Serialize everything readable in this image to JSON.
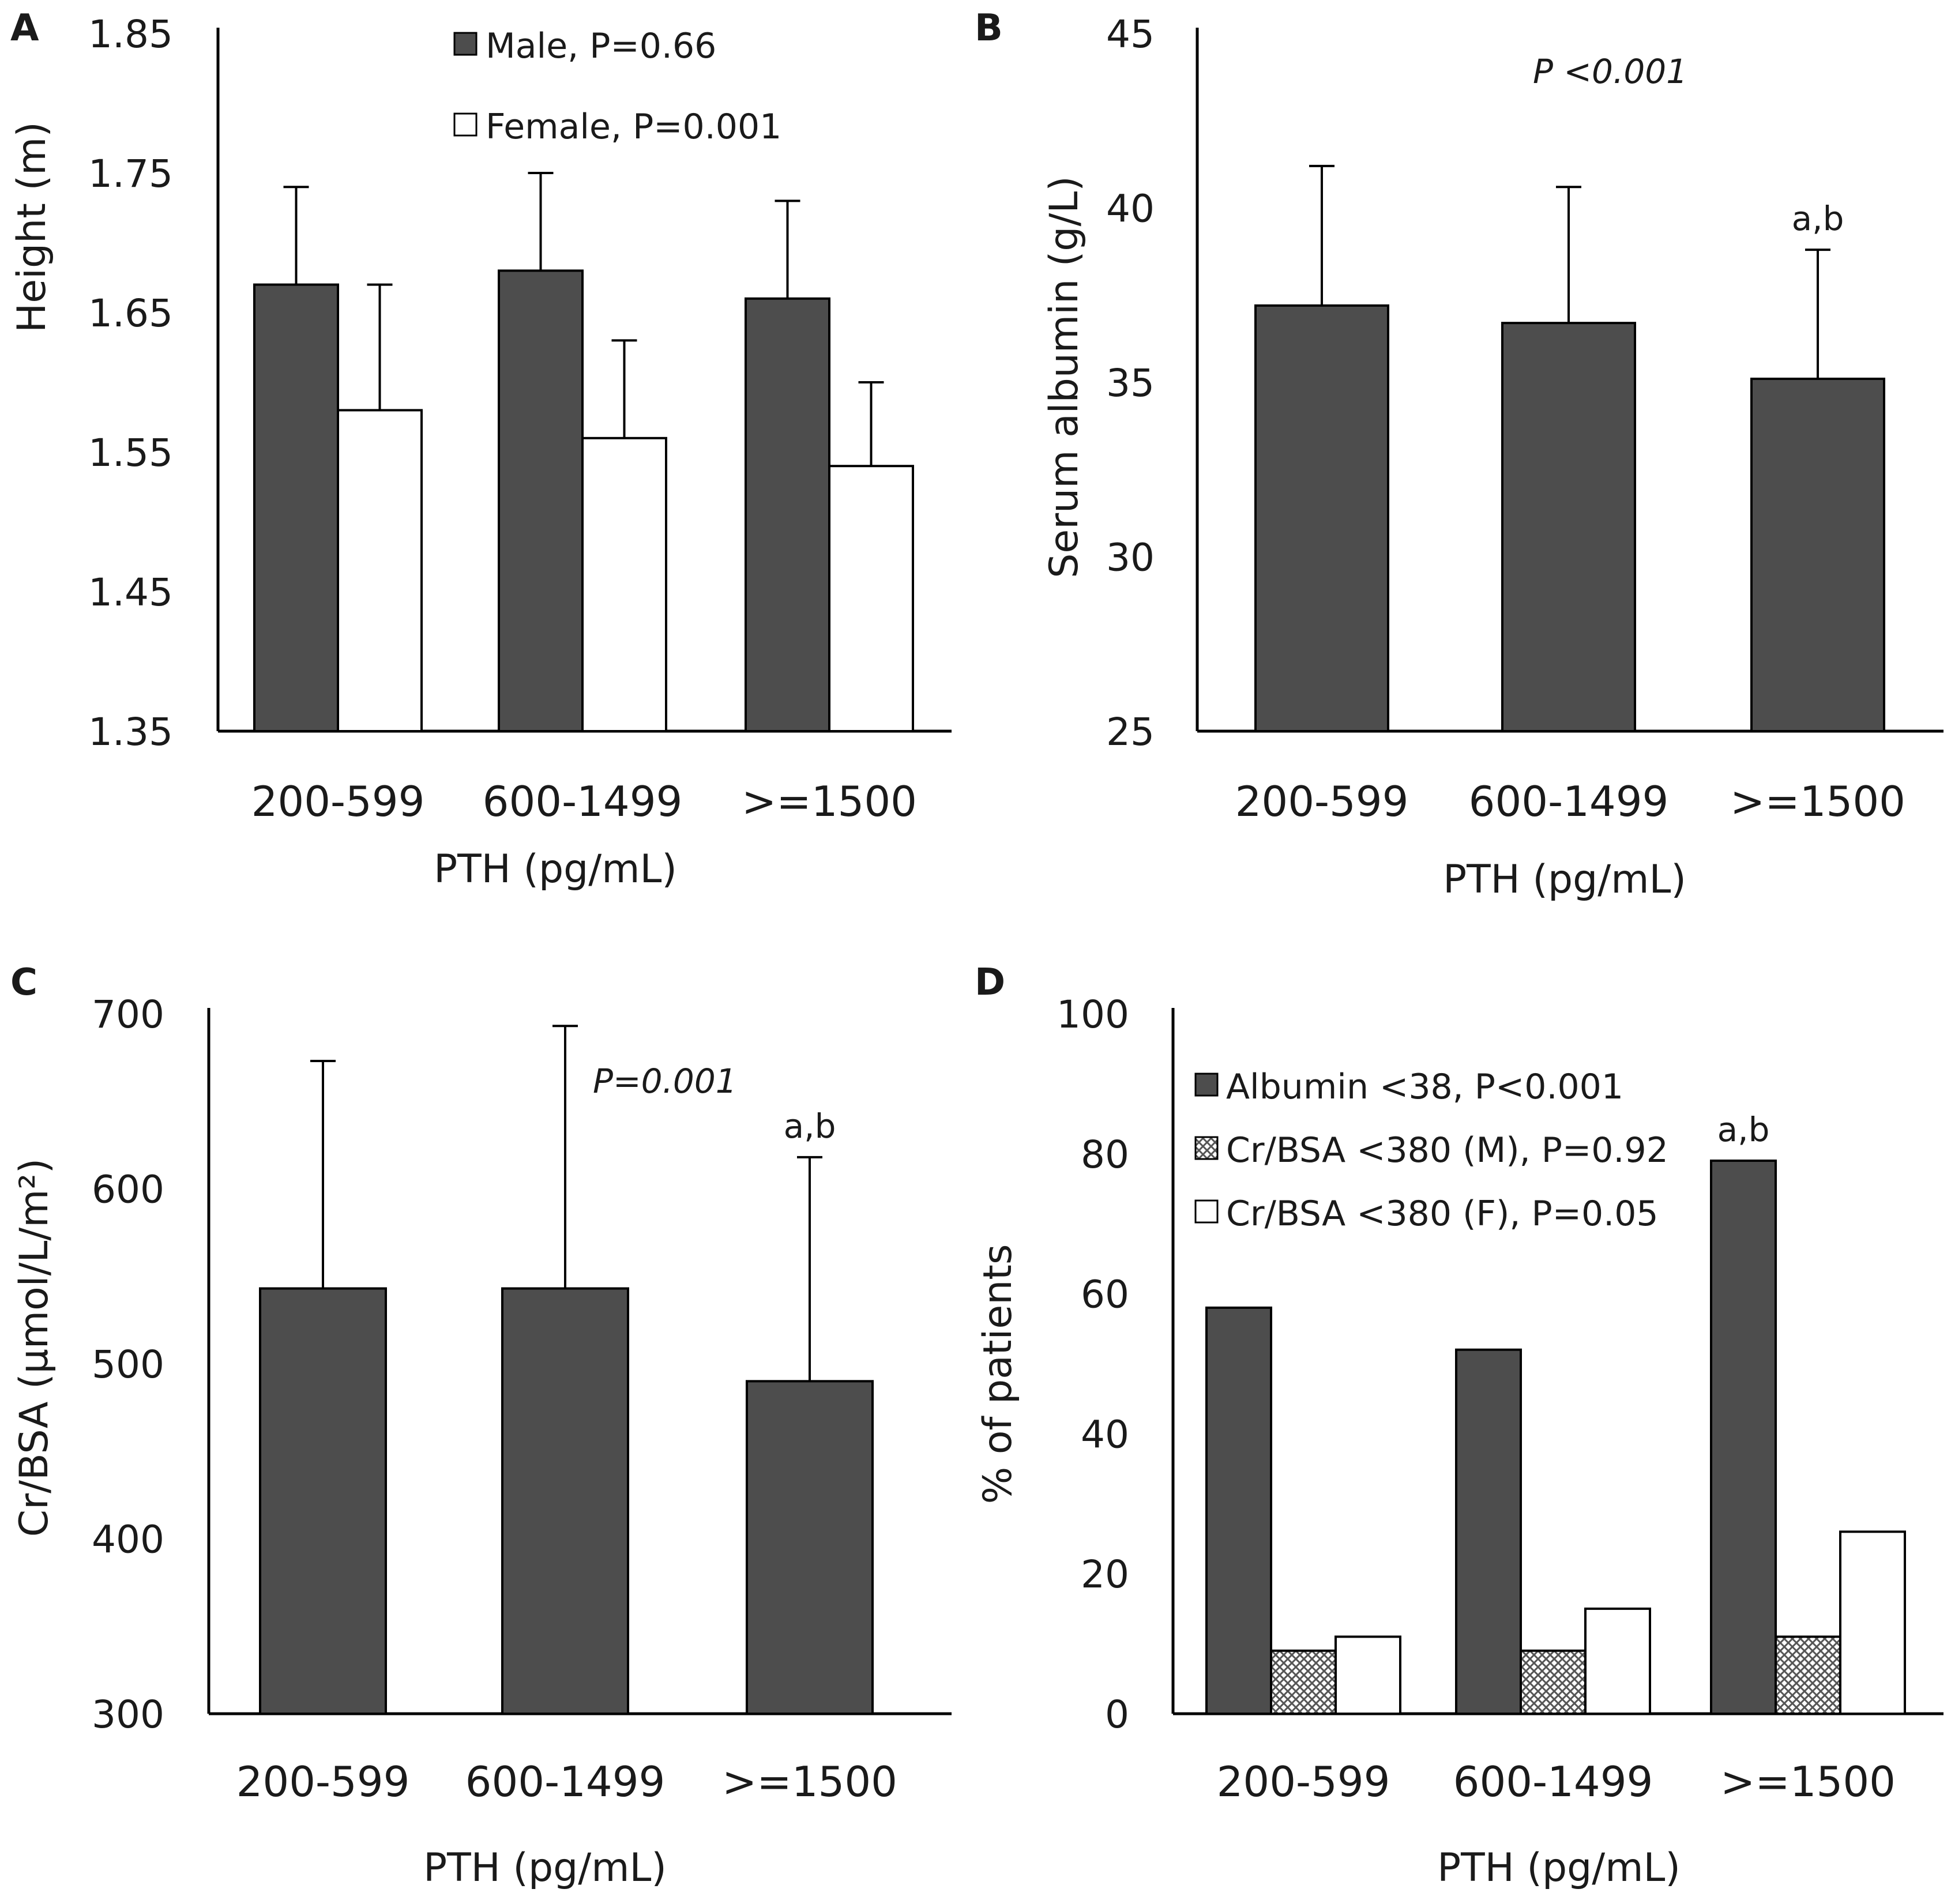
{
  "colors": {
    "dark": "#4d4d4d",
    "white": "#ffffff",
    "axis": "#000000",
    "text": "#1a1a1a"
  },
  "chart_data": [
    {
      "panel": "A",
      "type": "bar",
      "ylabel": "Height (m)",
      "xlabel": "PTH (pg/mL)",
      "categories": [
        "200-599",
        "600-1499",
        ">=1500"
      ],
      "ylim": [
        1.35,
        1.85
      ],
      "yticks": [
        "1.85",
        "1.75",
        "1.65",
        "1.55",
        "1.45",
        "1.35"
      ],
      "series": [
        {
          "name": "Male, P=0.66",
          "fill": "dark",
          "values": [
            1.67,
            1.68,
            1.66
          ],
          "err": [
            0.07,
            0.07,
            0.07
          ]
        },
        {
          "name": "Female, P=0.001",
          "fill": "white",
          "values": [
            1.58,
            1.56,
            1.54
          ],
          "err": [
            0.09,
            0.07,
            0.06
          ]
        }
      ],
      "legend": "top-center"
    },
    {
      "panel": "B",
      "type": "bar",
      "ylabel": "Serum albumin (g/L)",
      "xlabel": "PTH (pg/mL)",
      "categories": [
        "200-599",
        "600-1499",
        ">=1500"
      ],
      "ylim": [
        25,
        45
      ],
      "yticks": [
        "45",
        "40",
        "35",
        "30",
        "25"
      ],
      "series": [
        {
          "name": "Serum albumin",
          "fill": "dark",
          "values": [
            37.2,
            36.7,
            35.1
          ],
          "err": [
            4.0,
            3.9,
            3.7
          ]
        }
      ],
      "pvalue": "P <0.001",
      "annotation": "a,b"
    },
    {
      "panel": "C",
      "type": "bar",
      "ylabel": "Cr/BSA (µmol/L/m²)",
      "xlabel": "PTH (pg/mL)",
      "categories": [
        "200-599",
        "600-1499",
        ">=1500"
      ],
      "ylim": [
        300,
        700
      ],
      "yticks": [
        "700",
        "600",
        "500",
        "400",
        "300"
      ],
      "series": [
        {
          "name": "Cr/BSA",
          "fill": "dark",
          "values": [
            543,
            543,
            490
          ],
          "err": [
            130,
            150,
            128
          ]
        }
      ],
      "pvalue": "P=0.001",
      "annotation": "a,b"
    },
    {
      "panel": "D",
      "type": "bar",
      "ylabel": "% of patients",
      "xlabel": "PTH (pg/mL)",
      "categories": [
        "200-599",
        "600-1499",
        ">=1500"
      ],
      "ylim": [
        0,
        100
      ],
      "yticks": [
        "100",
        "80",
        "60",
        "40",
        "20",
        "0"
      ],
      "series": [
        {
          "name": "Albumin <38, P<0.001",
          "fill": "dark",
          "values": [
            58,
            52,
            79
          ]
        },
        {
          "name": "Cr/BSA <380 (M), P=0.92",
          "fill": "hatch",
          "values": [
            9,
            9,
            11
          ]
        },
        {
          "name": "Cr/BSA <380 (F), P=0.05",
          "fill": "white",
          "values": [
            11,
            15,
            26
          ]
        }
      ],
      "annotation": "a,b",
      "legend": "top-left"
    }
  ]
}
